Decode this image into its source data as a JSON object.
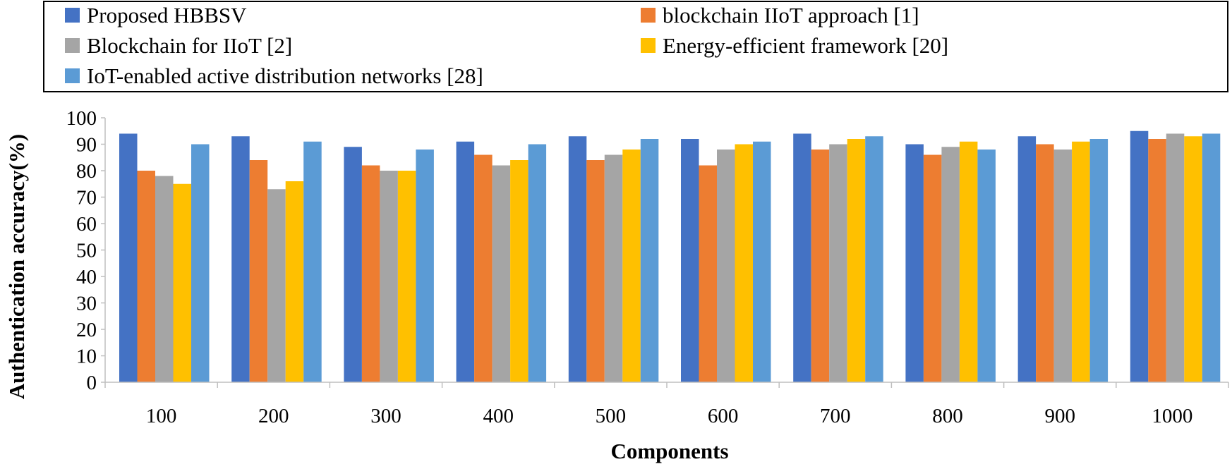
{
  "chart_data": {
    "type": "bar",
    "title": "",
    "xlabel": "Components",
    "ylabel": "Authentication accuracy(%)",
    "ylim": [
      0,
      100
    ],
    "yticks": [
      0,
      10,
      20,
      30,
      40,
      50,
      60,
      70,
      80,
      90,
      100
    ],
    "grid": false,
    "legend_position": "top",
    "categories": [
      "100",
      "200",
      "300",
      "400",
      "500",
      "600",
      "700",
      "800",
      "900",
      "1000"
    ],
    "series": [
      {
        "name": "Proposed HBBSV",
        "color": "#4472C4",
        "values": [
          94,
          93,
          89,
          91,
          93,
          92,
          94,
          90,
          93,
          95
        ]
      },
      {
        "name": "blockchain IIoT approach [1]",
        "color": "#ED7D31",
        "values": [
          80,
          84,
          82,
          86,
          84,
          82,
          88,
          86,
          90,
          92
        ]
      },
      {
        "name": "Blockchain for IIoT [2]",
        "color": "#A5A5A5",
        "values": [
          78,
          73,
          80,
          82,
          86,
          88,
          90,
          89,
          88,
          94
        ]
      },
      {
        "name": "Energy-efficient framework [20]",
        "color": "#FFC000",
        "values": [
          75,
          76,
          80,
          84,
          88,
          90,
          92,
          91,
          91,
          93
        ]
      },
      {
        "name": "IoT-enabled active distribution networks [28]",
        "color": "#5B9BD5",
        "values": [
          90,
          91,
          88,
          90,
          92,
          91,
          93,
          88,
          92,
          94
        ]
      }
    ]
  }
}
